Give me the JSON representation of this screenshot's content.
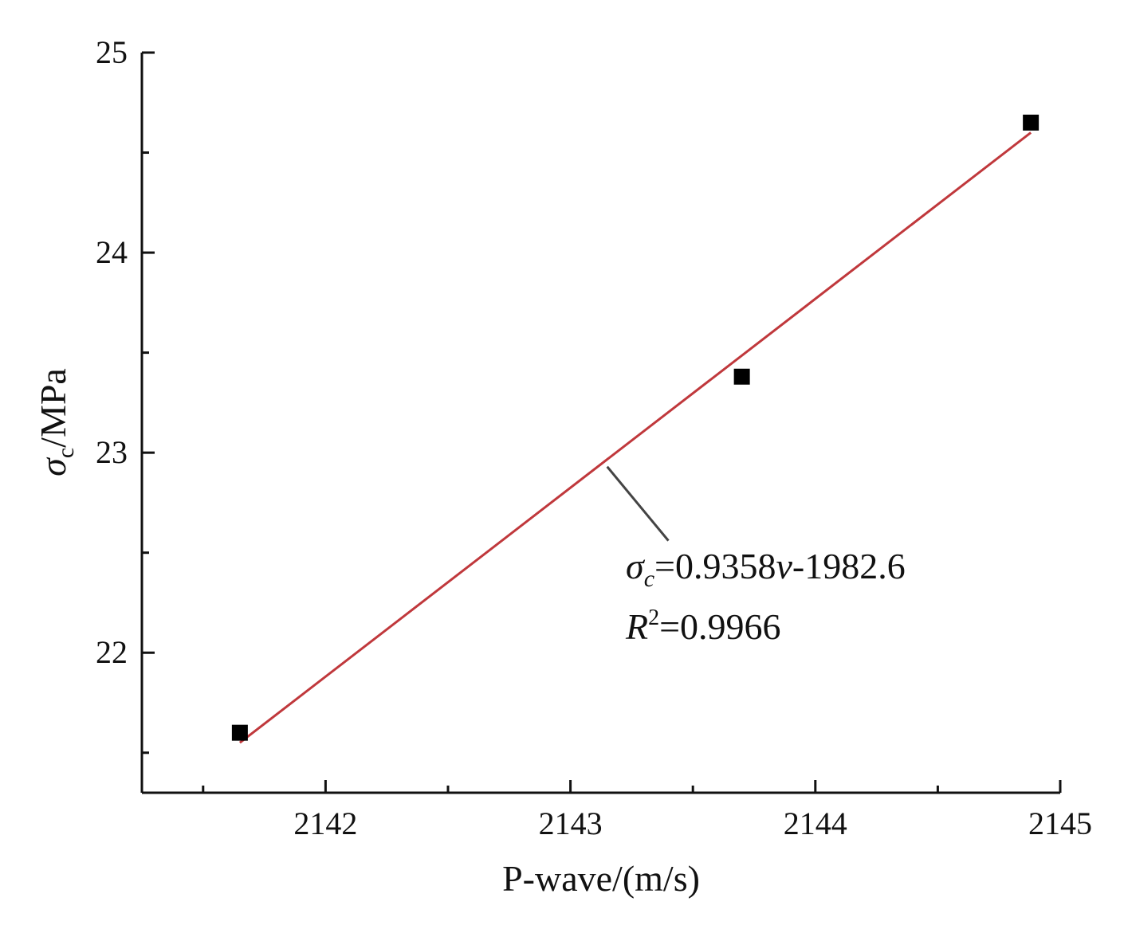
{
  "chart_data": {
    "type": "scatter",
    "xlabel": "P-wave/(m/s)",
    "ylabel": {
      "symbol": "σ",
      "subscript": "c",
      "unit": "/MPa"
    },
    "xlim": [
      2141.25,
      2145.0
    ],
    "ylim": [
      21.3,
      25.0
    ],
    "x_ticks": [
      2142,
      2143,
      2144,
      2145
    ],
    "x_minor_ticks": [
      2141.5,
      2142.5,
      2143.5,
      2144.5
    ],
    "y_ticks": [
      22,
      23,
      24,
      25
    ],
    "y_minor_ticks": [
      21.5,
      22.5,
      23.5,
      24.5
    ],
    "series": [
      {
        "type": "scatter",
        "marker": "square",
        "color": "#000000",
        "x": [
          2141.65,
          2143.7,
          2144.88
        ],
        "y": [
          21.6,
          23.38,
          24.65
        ]
      }
    ],
    "fit_line": {
      "color": "#c0383c",
      "x": [
        2141.65,
        2144.88
      ],
      "y": [
        21.55,
        24.6
      ]
    },
    "annotation": {
      "equation": {
        "symbol": "σ",
        "subscript": "c",
        "rest": "=0.9358",
        "var": "v",
        "tail": "-1982.6"
      },
      "r2": {
        "symbol": "R",
        "sup": "2",
        "rest": "=0.9966"
      },
      "pointer_from": [
        2143.15,
        22.93
      ],
      "pointer_to": [
        2143.4,
        22.56
      ]
    }
  }
}
